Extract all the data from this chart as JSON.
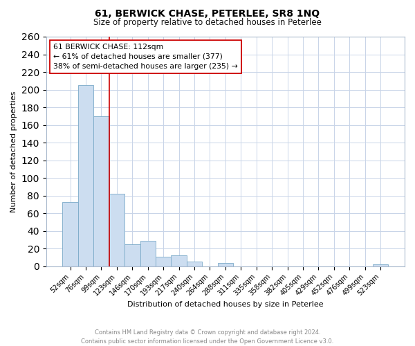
{
  "title": "61, BERWICK CHASE, PETERLEE, SR8 1NQ",
  "subtitle": "Size of property relative to detached houses in Peterlee",
  "xlabel": "Distribution of detached houses by size in Peterlee",
  "ylabel": "Number of detached properties",
  "bar_labels": [
    "52sqm",
    "76sqm",
    "99sqm",
    "123sqm",
    "146sqm",
    "170sqm",
    "193sqm",
    "217sqm",
    "240sqm",
    "264sqm",
    "288sqm",
    "311sqm",
    "335sqm",
    "358sqm",
    "382sqm",
    "405sqm",
    "429sqm",
    "452sqm",
    "476sqm",
    "499sqm",
    "523sqm"
  ],
  "bar_values": [
    73,
    205,
    170,
    82,
    25,
    29,
    11,
    12,
    5,
    0,
    4,
    0,
    0,
    0,
    0,
    0,
    0,
    0,
    0,
    0,
    2
  ],
  "bar_color": "#ccddf0",
  "bar_edge_color": "#7aaac8",
  "vline_x": 2.5,
  "vline_color": "#cc0000",
  "vline_linewidth": 1.2,
  "annotation_title": "61 BERWICK CHASE: 112sqm",
  "annotation_line1": "← 61% of detached houses are smaller (377)",
  "annotation_line2": "38% of semi-detached houses are larger (235) →",
  "annotation_box_color": "#ffffff",
  "annotation_box_edge": "#cc0000",
  "ylim": [
    0,
    260
  ],
  "yticks": [
    0,
    20,
    40,
    60,
    80,
    100,
    120,
    140,
    160,
    180,
    200,
    220,
    240,
    260
  ],
  "footer_line1": "Contains HM Land Registry data © Crown copyright and database right 2024.",
  "footer_line2": "Contains public sector information licensed under the Open Government Licence v3.0.",
  "bg_color": "#ffffff",
  "grid_color": "#c8d4e8"
}
